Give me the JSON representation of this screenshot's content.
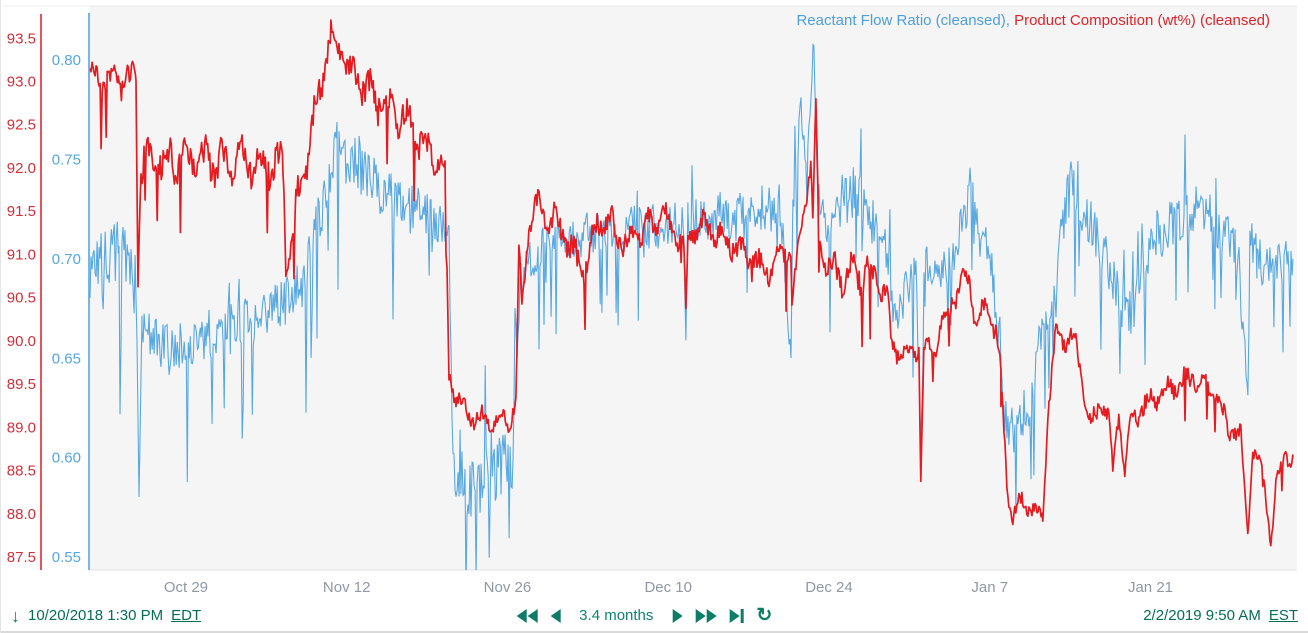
{
  "legend": {
    "series_blue_label": "Reactant Flow Ratio (cleansed)",
    "separator": ", ",
    "series_red_label": "Product Composition (wt%) (cleansed)"
  },
  "toolbar": {
    "start_time": "10/20/2018 1:30 PM",
    "start_tz": "EDT",
    "range_label": "3.4 months",
    "end_time": "2/2/2019 9:50 AM",
    "end_tz": "EST"
  },
  "icons": {
    "down_arrow": "↓",
    "refresh": "↻"
  },
  "colors": {
    "series_blue": "#58a8e2",
    "series_red": "#e51b20",
    "axis_red_label": "#d22f39",
    "axis_red_line": "#e02832",
    "axis_blue": "#55a7e2",
    "x_label": "#8f98a3",
    "x_axis_line": "#dfe1e3",
    "toolbar_teal": "#046d58",
    "plot_background": "#f5f5f6"
  },
  "chart_data": {
    "type": "line",
    "title": "",
    "grid": false,
    "legend_position": "top-right",
    "x_axis": {
      "start_label": "10/20/2018 1:30 PM EDT",
      "end_label": "2/2/2019 9:50 AM EST",
      "total_days": 104.85,
      "ticks": [
        {
          "label": "Oct 29",
          "day": 8.44
        },
        {
          "label": "Nov 12",
          "day": 22.44
        },
        {
          "label": "Nov 26",
          "day": 36.44
        },
        {
          "label": "Dec 10",
          "day": 50.44
        },
        {
          "label": "Dec 24",
          "day": 64.44
        },
        {
          "label": "Jan 7",
          "day": 78.44
        },
        {
          "label": "Jan 21",
          "day": 92.44
        }
      ]
    },
    "axes": {
      "red": {
        "min": 87.35,
        "max": 93.85,
        "tick_values": [
          93.5,
          93.0,
          92.5,
          92.0,
          91.5,
          91.0,
          90.5,
          90.0,
          89.5,
          89.0,
          88.5,
          88.0,
          87.5
        ]
      },
      "blue": {
        "min": 0.5435,
        "max": 0.8262,
        "tick_values": [
          0.8,
          0.75,
          0.7,
          0.65,
          0.6,
          0.55
        ]
      }
    },
    "series": [
      {
        "name": "Reactant Flow Ratio (cleansed)",
        "axis": "blue",
        "color": "#58a8e2",
        "points_format": [
          "day_from_start",
          "value",
          "noise_half_band"
        ],
        "points": [
          [
            0.09,
            0.695,
            0.015
          ],
          [
            2.61,
            0.705,
            0.015
          ],
          [
            4.09,
            0.69,
            0.015
          ],
          [
            4.35,
            0.58,
            0.004
          ],
          [
            4.62,
            0.665,
            0.013
          ],
          [
            6.27,
            0.655,
            0.013
          ],
          [
            9.75,
            0.66,
            0.013
          ],
          [
            12.37,
            0.665,
            0.013
          ],
          [
            14.98,
            0.67,
            0.013
          ],
          [
            17.59,
            0.68,
            0.013
          ],
          [
            18.9,
            0.69,
            0.014
          ],
          [
            19.77,
            0.715,
            0.015
          ],
          [
            21.07,
            0.75,
            0.016
          ],
          [
            21.94,
            0.755,
            0.016
          ],
          [
            22.99,
            0.748,
            0.014
          ],
          [
            24.56,
            0.74,
            0.013
          ],
          [
            26.3,
            0.73,
            0.013
          ],
          [
            28.04,
            0.725,
            0.013
          ],
          [
            29.78,
            0.72,
            0.013
          ],
          [
            31.35,
            0.71,
            0.012
          ],
          [
            31.7,
            0.6,
            0.01
          ],
          [
            32.39,
            0.585,
            0.021
          ],
          [
            35.88,
            0.59,
            0.021
          ],
          [
            36.92,
            0.6,
            0.018
          ],
          [
            37.27,
            0.655,
            0.012
          ],
          [
            37.62,
            0.69,
            0.01
          ],
          [
            38.31,
            0.7,
            0.01
          ],
          [
            39.36,
            0.705,
            0.011
          ],
          [
            41.97,
            0.71,
            0.011
          ],
          [
            44.58,
            0.715,
            0.011
          ],
          [
            48.06,
            0.715,
            0.012
          ],
          [
            49.8,
            0.72,
            0.013
          ],
          [
            51.81,
            0.72,
            0.012
          ],
          [
            51.98,
            0.66,
            0.004
          ],
          [
            52.16,
            0.72,
            0.012
          ],
          [
            53.29,
            0.72,
            0.012
          ],
          [
            55.9,
            0.72,
            0.012
          ],
          [
            58.52,
            0.725,
            0.013
          ],
          [
            60.26,
            0.725,
            0.013
          ],
          [
            61.13,
            0.648,
            0.004
          ],
          [
            61.3,
            0.73,
            0.012
          ],
          [
            62.0,
            0.775,
            0.01
          ],
          [
            62.43,
            0.74,
            0.01
          ],
          [
            63.13,
            0.81,
            0.006
          ],
          [
            63.48,
            0.735,
            0.01
          ],
          [
            64.18,
            0.72,
            0.012
          ],
          [
            66.79,
            0.735,
            0.013
          ],
          [
            68.1,
            0.72,
            0.012
          ],
          [
            69.66,
            0.7,
            0.012
          ],
          [
            70.27,
            0.665,
            0.012
          ],
          [
            71.14,
            0.685,
            0.012
          ],
          [
            72.01,
            0.7,
            0.012
          ],
          [
            72.45,
            0.605,
            0.005
          ],
          [
            72.88,
            0.7,
            0.012
          ],
          [
            74.19,
            0.695,
            0.012
          ],
          [
            75.49,
            0.7,
            0.012
          ],
          [
            76.8,
            0.74,
            0.013
          ],
          [
            77.67,
            0.71,
            0.012
          ],
          [
            78.54,
            0.7,
            0.012
          ],
          [
            79.24,
            0.66,
            0.01
          ],
          [
            79.67,
            0.62,
            0.01
          ],
          [
            80.28,
            0.615,
            0.012
          ],
          [
            81.59,
            0.615,
            0.012
          ],
          [
            82.2,
            0.64,
            0.012
          ],
          [
            83.33,
            0.67,
            0.012
          ],
          [
            84.46,
            0.7,
            0.013
          ],
          [
            85.33,
            0.74,
            0.014
          ],
          [
            86.38,
            0.725,
            0.013
          ],
          [
            87.42,
            0.715,
            0.013
          ],
          [
            88.56,
            0.7,
            0.013
          ],
          [
            89.69,
            0.68,
            0.013
          ],
          [
            90.56,
            0.67,
            0.013
          ],
          [
            91.61,
            0.69,
            0.013
          ],
          [
            92.48,
            0.71,
            0.013
          ],
          [
            93.78,
            0.715,
            0.013
          ],
          [
            95.09,
            0.72,
            0.013
          ],
          [
            96.57,
            0.725,
            0.013
          ],
          [
            97.7,
            0.72,
            0.013
          ],
          [
            98.75,
            0.71,
            0.013
          ],
          [
            99.88,
            0.71,
            0.012
          ],
          [
            100.92,
            0.632,
            0.004
          ],
          [
            101.18,
            0.71,
            0.012
          ],
          [
            101.71,
            0.7,
            0.012
          ],
          [
            102.75,
            0.695,
            0.012
          ],
          [
            103.8,
            0.7,
            0.012
          ],
          [
            104.84,
            0.7,
            0.01
          ]
        ]
      },
      {
        "name": "Product Composition (wt%) (cleansed)",
        "axis": "red",
        "color": "#e51b20",
        "points_format": [
          "day_from_start",
          "value",
          "noise_half_band"
        ],
        "points": [
          [
            0.09,
            93.05,
            0.17
          ],
          [
            4.09,
            93.0,
            0.17
          ],
          [
            4.27,
            90.65,
            0.05
          ],
          [
            4.53,
            92.1,
            0.22
          ],
          [
            16.89,
            92.05,
            0.22
          ],
          [
            17.15,
            90.78,
            0.05
          ],
          [
            18.02,
            91.5,
            0.2
          ],
          [
            21.07,
            93.55,
            0.2
          ],
          [
            22.99,
            93.1,
            0.2
          ],
          [
            24.99,
            92.8,
            0.2
          ],
          [
            27.34,
            92.6,
            0.2
          ],
          [
            29.78,
            92.15,
            0.18
          ],
          [
            31.0,
            92.0,
            0.15
          ],
          [
            31.35,
            89.6,
            0.1
          ],
          [
            31.96,
            89.35,
            0.12
          ],
          [
            33.26,
            89.1,
            0.12
          ],
          [
            36.74,
            89.1,
            0.12
          ],
          [
            37.18,
            89.3,
            0.1
          ],
          [
            37.44,
            91.1,
            0.08
          ],
          [
            37.7,
            90.4,
            0.1
          ],
          [
            38.31,
            91.3,
            0.12
          ],
          [
            38.92,
            91.55,
            0.15
          ],
          [
            41.1,
            91.3,
            0.2
          ],
          [
            42.84,
            90.8,
            0.18
          ],
          [
            44.58,
            91.45,
            0.18
          ],
          [
            46.76,
            91.15,
            0.18
          ],
          [
            48.93,
            91.3,
            0.18
          ],
          [
            49.8,
            91.5,
            0.15
          ],
          [
            51.81,
            91.1,
            0.12
          ],
          [
            51.98,
            90.3,
            0.05
          ],
          [
            52.16,
            91.2,
            0.12
          ],
          [
            53.29,
            91.35,
            0.15
          ],
          [
            55.03,
            91.2,
            0.16
          ],
          [
            57.2,
            91.0,
            0.16
          ],
          [
            58.95,
            90.8,
            0.15
          ],
          [
            61.12,
            91.1,
            0.12
          ],
          [
            61.21,
            90.45,
            0.05
          ],
          [
            61.99,
            91.3,
            0.12
          ],
          [
            62.86,
            92.0,
            0.1
          ],
          [
            63.04,
            91.4,
            0.08
          ],
          [
            63.3,
            92.75,
            0.08
          ],
          [
            63.56,
            91.3,
            0.1
          ],
          [
            63.91,
            90.95,
            0.12
          ],
          [
            65.48,
            90.75,
            0.18
          ],
          [
            68.09,
            90.8,
            0.18
          ],
          [
            69.48,
            90.55,
            0.15
          ],
          [
            69.83,
            89.95,
            0.12
          ],
          [
            71.14,
            89.8,
            0.12
          ],
          [
            72.27,
            89.9,
            0.1
          ],
          [
            72.44,
            88.37,
            0.05
          ],
          [
            72.7,
            89.9,
            0.1
          ],
          [
            73.75,
            89.95,
            0.12
          ],
          [
            75.05,
            90.45,
            0.15
          ],
          [
            76.62,
            90.75,
            0.12
          ],
          [
            77.23,
            90.2,
            0.12
          ],
          [
            78.1,
            90.4,
            0.12
          ],
          [
            78.97,
            90.1,
            0.12
          ],
          [
            79.41,
            89.6,
            0.1
          ],
          [
            80.02,
            88.2,
            0.08
          ],
          [
            80.45,
            87.95,
            0.08
          ],
          [
            81.15,
            88.15,
            0.1
          ],
          [
            83.06,
            87.95,
            0.08
          ],
          [
            83.59,
            89.3,
            0.1
          ],
          [
            84.2,
            90.1,
            0.1
          ],
          [
            85.07,
            90.0,
            0.12
          ],
          [
            85.94,
            90.05,
            0.1
          ],
          [
            86.37,
            89.6,
            0.1
          ],
          [
            87.24,
            89.0,
            0.12
          ],
          [
            88.11,
            89.3,
            0.12
          ],
          [
            88.81,
            89.1,
            0.1
          ],
          [
            89.16,
            88.5,
            0.06
          ],
          [
            89.68,
            89.2,
            0.1
          ],
          [
            90.2,
            88.45,
            0.06
          ],
          [
            90.73,
            89.1,
            0.1
          ],
          [
            91.6,
            89.2,
            0.12
          ],
          [
            92.9,
            89.35,
            0.12
          ],
          [
            94.21,
            89.45,
            0.12
          ],
          [
            96.21,
            89.6,
            0.12
          ],
          [
            98.13,
            89.35,
            0.12
          ],
          [
            99.26,
            89.0,
            0.12
          ],
          [
            100.3,
            88.9,
            0.1
          ],
          [
            100.91,
            87.8,
            0.05
          ],
          [
            101.35,
            88.7,
            0.1
          ],
          [
            102.22,
            88.55,
            0.1
          ],
          [
            102.92,
            87.65,
            0.05
          ],
          [
            103.44,
            88.4,
            0.1
          ],
          [
            104.22,
            88.75,
            0.1
          ],
          [
            104.66,
            88.5,
            0.08
          ],
          [
            104.84,
            88.65,
            0.05
          ]
        ]
      }
    ]
  }
}
